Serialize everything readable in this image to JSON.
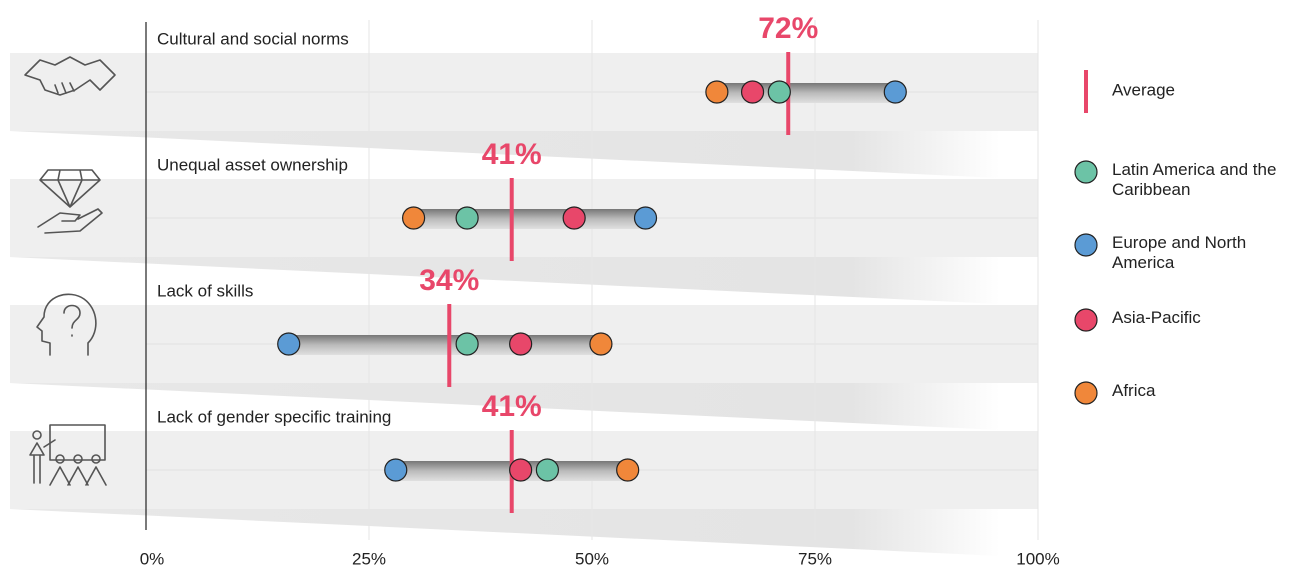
{
  "chart_data": {
    "type": "dot",
    "categories": [
      "Cultural and social norms",
      "Unequal asset ownership",
      "Lack of skills",
      "Lack of gender specific training"
    ],
    "average": {
      "name": "Average",
      "color": "#e8476a",
      "values": [
        72,
        41,
        34,
        41
      ],
      "value_labels": [
        "72%",
        "41%",
        "34%",
        "41%"
      ]
    },
    "series": [
      {
        "name": "Latin America and the Caribbean",
        "color": "#6cc3a6",
        "values": [
          71,
          36,
          36,
          45
        ]
      },
      {
        "name": "Europe and North America",
        "color": "#5b9bd5",
        "values": [
          84,
          56,
          16,
          28
        ]
      },
      {
        "name": "Asia-Pacific",
        "color": "#e8476a",
        "values": [
          68,
          48,
          42,
          42
        ]
      },
      {
        "name": "Africa",
        "color": "#f0873a",
        "values": [
          64,
          30,
          51,
          54
        ]
      }
    ],
    "xlim": [
      0,
      100
    ],
    "xticks": [
      {
        "value": 0,
        "label": "0%"
      },
      {
        "value": 25,
        "label": "25%"
      },
      {
        "value": 50,
        "label": "50%"
      },
      {
        "value": 75,
        "label": "75%"
      },
      {
        "value": 100,
        "label": "100%"
      }
    ],
    "grid": true
  }
}
